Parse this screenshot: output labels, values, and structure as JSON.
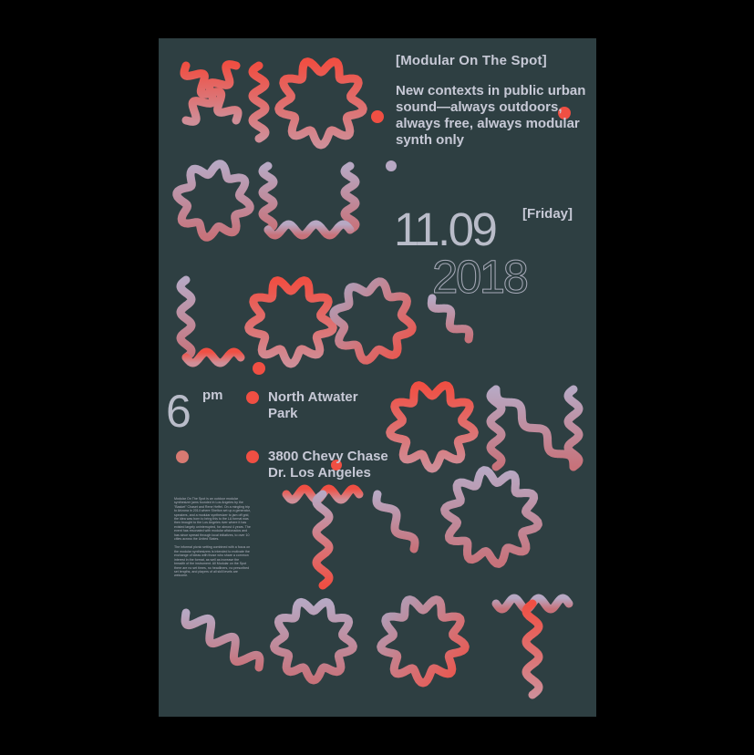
{
  "poster": {
    "brand": "[Modular On The Spot]",
    "tagline": "New contexts in public urban sound—always outdoors, always free, always modular synth only",
    "date": "11.09",
    "weekday": "[Friday]",
    "year": "2018",
    "time_hour": "6",
    "time_suffix": "pm",
    "venue": "North Atwater Park",
    "address": "3800 Chevy Chase Dr. Los Angeles",
    "body_paragraph_1": "Modular On The Spot is an outdoor modular synthesizer jams founded in Los Angeles by the \"Basket\" Chaset and Rene Heffel. On a mingling trip to Arizona in 2014 where Shelton set up a generator, speakers, and a modular synthesizer to jam off grid, the idea was born to bring this to the LA format was then brought to the Los Angeles river where it has existed largely uninterrupted, for almost 4 years. The event has resonated with modular aficionados and has since spread through local initiatives, to over 10 cities across the United States.",
    "body_paragraph_2": "The informal picnic setting combined with a focus on the modular synthesizers is intended to motivate the exchange of ideas with those who share a common interest in the format, as well as increase the breadth of the instrument. All Modular on the Spot there are no set times, no headliners, no prescribed set lengths, and players of all skill levels are welcome."
  },
  "colors": {
    "background": "#000000",
    "poster": "#2e3f42",
    "accent_red": "#f04f43",
    "lavender": "#a9a5c2",
    "text": "#c7c9d6"
  }
}
